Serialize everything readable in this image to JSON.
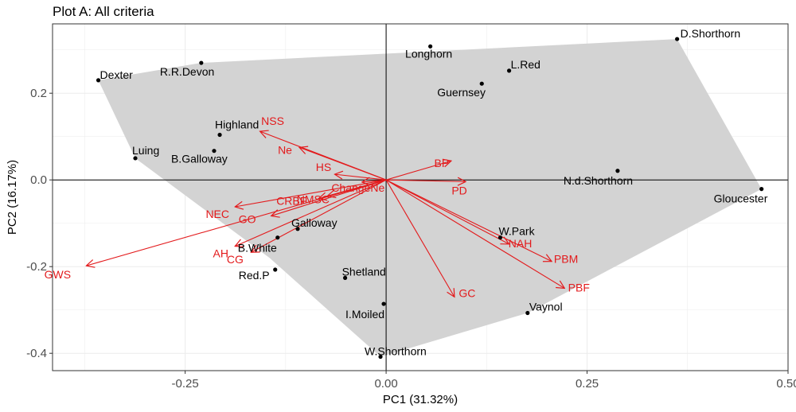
{
  "title": "Plot A: All criteria",
  "colors": {
    "hull": "#d3d3d3",
    "vector": "#e31a1c",
    "grid": "#ebebeb",
    "point": "#000000"
  },
  "chart_data": {
    "type": "scatter",
    "title": "Plot A: All criteria",
    "xlabel": "PC1 (31.32%)",
    "ylabel": "PC2 (16.17%)",
    "xlim": [
      -0.415,
      0.5
    ],
    "ylim": [
      -0.44,
      0.36
    ],
    "xticks": [
      -0.25,
      0.0,
      0.25,
      0.5
    ],
    "xtick_labels": [
      "-0.25",
      "0.00",
      "0.25",
      "0.50"
    ],
    "yticks": [
      -0.4,
      -0.2,
      0.0,
      0.2
    ],
    "ytick_labels": [
      "-0.4",
      "-0.2",
      "0.0",
      "0.2"
    ],
    "grid": true,
    "hull_order": [
      "Dexter",
      "R.R.Devon",
      "D.Shorthorn",
      "Gloucester",
      "Vaynol",
      "W.Shorthorn",
      "GWS_hull",
      "Luing"
    ],
    "hull_extra": {
      "GWS_hull": [
        -0.145,
        -0.18
      ]
    },
    "points": [
      {
        "name": "D.Shorthorn",
        "x": 0.362,
        "y": 0.325
      },
      {
        "name": "Longhorn",
        "x": 0.055,
        "y": 0.308
      },
      {
        "name": "L.Red",
        "x": 0.153,
        "y": 0.252
      },
      {
        "name": "R.R.Devon",
        "x": -0.23,
        "y": 0.27
      },
      {
        "name": "Dexter",
        "x": -0.358,
        "y": 0.23
      },
      {
        "name": "Guernsey",
        "x": 0.119,
        "y": 0.222
      },
      {
        "name": "Highland",
        "x": -0.207,
        "y": 0.104
      },
      {
        "name": "B.Galloway",
        "x": -0.214,
        "y": 0.067
      },
      {
        "name": "Luing",
        "x": -0.312,
        "y": 0.05
      },
      {
        "name": "N.d.Shorthorn",
        "x": 0.288,
        "y": 0.021
      },
      {
        "name": "Gloucester",
        "x": 0.467,
        "y": -0.021
      },
      {
        "name": "Galloway",
        "x": -0.11,
        "y": -0.113
      },
      {
        "name": "B.White",
        "x": -0.135,
        "y": -0.133
      },
      {
        "name": "W.Park",
        "x": 0.142,
        "y": -0.133
      },
      {
        "name": "Red.P",
        "x": -0.138,
        "y": -0.207
      },
      {
        "name": "Shetland",
        "x": -0.051,
        "y": -0.226
      },
      {
        "name": "I.Moiled",
        "x": -0.003,
        "y": -0.286
      },
      {
        "name": "Vaynol",
        "x": 0.176,
        "y": -0.307
      },
      {
        "name": "W.Shorthorn",
        "x": -0.007,
        "y": -0.408
      }
    ],
    "vectors": [
      {
        "name": "NSS",
        "x": -0.157,
        "y": 0.112
      },
      {
        "name": "Ne",
        "x": -0.108,
        "y": 0.075
      },
      {
        "name": "BP",
        "x": 0.081,
        "y": 0.044
      },
      {
        "name": "HS",
        "x": -0.064,
        "y": 0.013
      },
      {
        "name": "ChangeNe",
        "x": -0.03,
        "y": -0.005
      },
      {
        "name": "PD",
        "x": 0.099,
        "y": -0.004
      },
      {
        "name": "NEC",
        "x": -0.188,
        "y": -0.062
      },
      {
        "name": "NMSC",
        "x": -0.073,
        "y": -0.037
      },
      {
        "name": "CRBF",
        "x": -0.084,
        "y": -0.043
      },
      {
        "name": "GO",
        "x": -0.143,
        "y": -0.083
      },
      {
        "name": "NAH",
        "x": 0.153,
        "y": -0.148
      },
      {
        "name": "PBM",
        "x": 0.206,
        "y": -0.188
      },
      {
        "name": "GWS",
        "x": -0.373,
        "y": -0.198
      },
      {
        "name": "AH",
        "x": -0.188,
        "y": -0.153
      },
      {
        "name": "CG",
        "x": -0.168,
        "y": -0.167
      },
      {
        "name": "PBF",
        "x": 0.222,
        "y": -0.25
      },
      {
        "name": "GC",
        "x": 0.085,
        "y": -0.27
      }
    ]
  }
}
